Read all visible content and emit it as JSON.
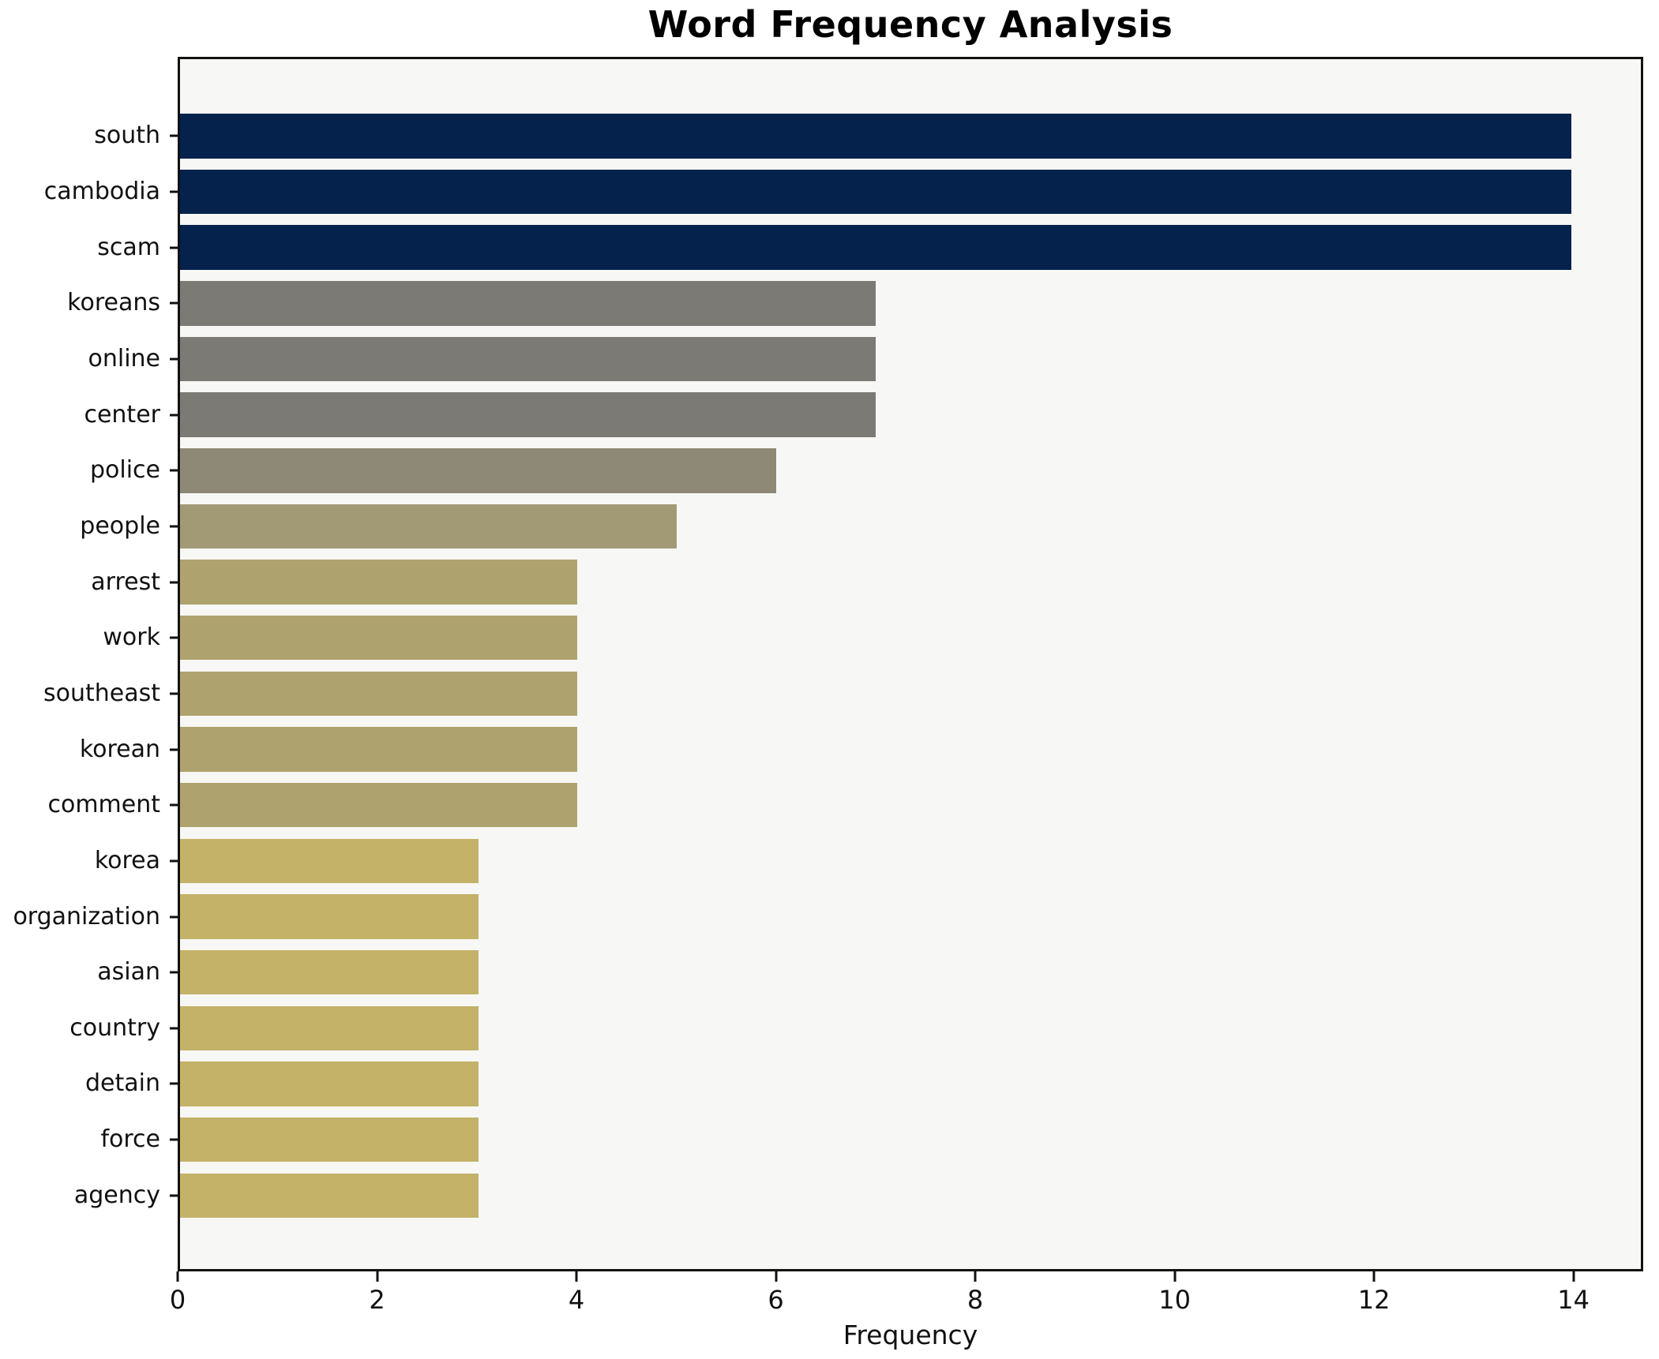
{
  "chart": {
    "title": "Word Frequency Analysis",
    "xlabel": "Frequency"
  },
  "chart_data": {
    "type": "bar",
    "orientation": "horizontal",
    "title": "Word Frequency Analysis",
    "xlabel": "Frequency",
    "ylabel": "",
    "grid": false,
    "legend": null,
    "plot_background": "#f7f7f5",
    "figure_background": "#ffffff",
    "spine_color": "#121212",
    "xlim": [
      0,
      14.7
    ],
    "xticks": [
      0,
      2,
      4,
      6,
      8,
      10,
      12,
      14
    ],
    "categories": [
      "south",
      "cambodia",
      "scam",
      "koreans",
      "online",
      "center",
      "police",
      "people",
      "arrest",
      "work",
      "southeast",
      "korean",
      "comment",
      "korea",
      "organization",
      "asian",
      "country",
      "detain",
      "force",
      "agency"
    ],
    "values": [
      14,
      14,
      14,
      7,
      7,
      7,
      6,
      5,
      4,
      4,
      4,
      4,
      4,
      3,
      3,
      3,
      3,
      3,
      3,
      3
    ],
    "colors": [
      "#04224c",
      "#04224c",
      "#04224c",
      "#7b7a75",
      "#7b7a75",
      "#7b7a75",
      "#8e8977",
      "#a29a75",
      "#aea36e",
      "#aea36e",
      "#aea36e",
      "#aea36e",
      "#aea36e",
      "#c3b268",
      "#c3b268",
      "#c3b268",
      "#c3b268",
      "#c3b268",
      "#c3b268",
      "#c3b268"
    ]
  }
}
